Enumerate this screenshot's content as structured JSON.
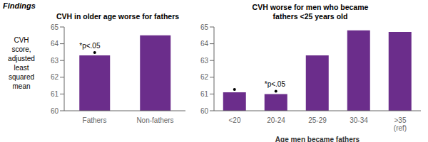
{
  "title": "Findings",
  "chart_data": [
    {
      "type": "bar",
      "title": "CVH in older age worse for fathers",
      "categories": [
        "Fathers",
        "Non-fathers"
      ],
      "values": [
        63.3,
        64.5
      ],
      "color": "#6B2D8B",
      "ylim": [
        60,
        65
      ],
      "yticks": [
        60,
        61,
        62,
        63,
        64,
        65
      ],
      "ylabel": "CVH\nscore,\nadjusted\nleast\nsquared\nmean",
      "grid": false,
      "annotations": [
        {
          "text": "*p<.05",
          "categories": [
            "Fathers"
          ]
        }
      ]
    },
    {
      "type": "bar",
      "title": "CVH worse for men who became\nfathers <25 years old",
      "categories": [
        "<20",
        "20-24",
        "25-29",
        "30-34",
        ">35\n(ref)"
      ],
      "values": [
        61.1,
        61.0,
        63.3,
        64.8,
        64.7
      ],
      "color": "#6B2D8B",
      "ylim": [
        60,
        65
      ],
      "yticks": [
        60,
        61,
        62,
        63,
        64,
        65
      ],
      "xlabel": "Age men became fathers",
      "grid": false,
      "annotations": [
        {
          "text": "*p<.05",
          "categories": [
            "<20",
            "20-24"
          ]
        }
      ]
    }
  ]
}
